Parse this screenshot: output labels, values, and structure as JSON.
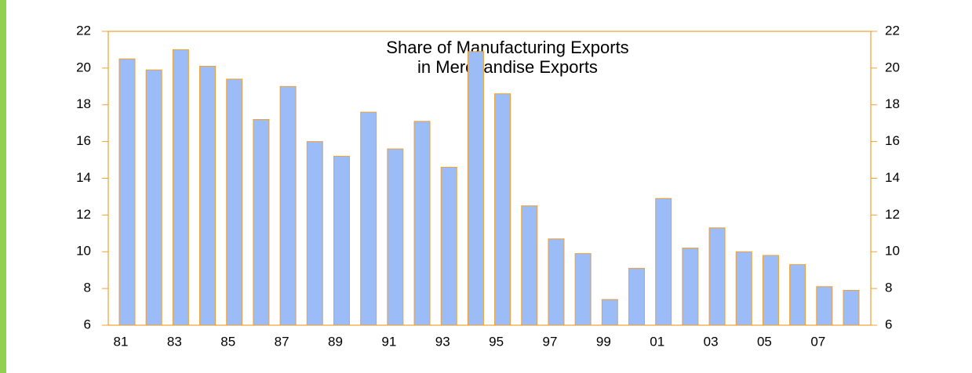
{
  "chart_data": {
    "type": "bar",
    "title": [
      "Share of Manufacturing Exports",
      "in Merchandise Exports"
    ],
    "categories": [
      "81",
      null,
      "83",
      null,
      "85",
      null,
      "87",
      null,
      "89",
      null,
      "91",
      null,
      "93",
      null,
      "95",
      null,
      "97",
      null,
      "99",
      null,
      "01",
      null,
      "03",
      null,
      "05",
      null,
      "07",
      null
    ],
    "values": [
      20.5,
      19.9,
      21.0,
      20.1,
      19.4,
      17.2,
      19.0,
      16.0,
      15.2,
      17.6,
      15.6,
      17.1,
      14.6,
      20.9,
      18.6,
      12.5,
      10.7,
      9.9,
      7.4,
      9.1,
      12.9,
      10.2,
      11.3,
      10.0,
      9.8,
      9.3,
      8.1,
      7.9
    ],
    "color": "#9cbcf8",
    "ylim": [
      6,
      22
    ],
    "yticks": [
      6,
      8,
      10,
      12,
      14,
      16,
      18,
      20,
      22
    ],
    "y2lim": [
      6,
      22
    ],
    "y2ticks": [
      6,
      8,
      10,
      12,
      14,
      16,
      18,
      20,
      22
    ],
    "grid": false
  }
}
